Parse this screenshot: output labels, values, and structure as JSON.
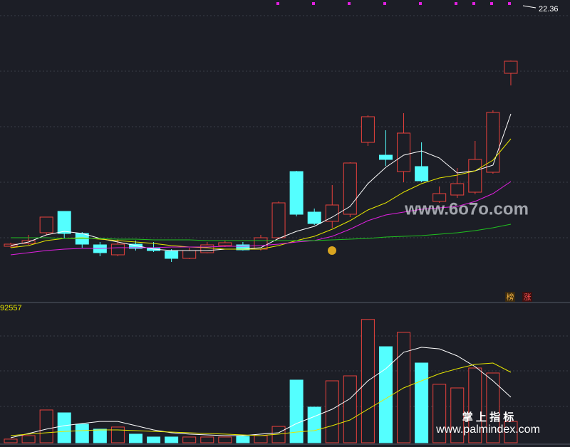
{
  "chart_data": [
    {
      "type": "candlestick",
      "max_marker": 22.36,
      "ylim": [
        8,
        25
      ],
      "up_color": "#e8413c",
      "down_color": "#54ffff",
      "open": [
        11.16,
        11.32,
        11.92,
        13.12,
        11.88,
        11.24,
        10.68,
        11.28,
        11.04,
        10.88,
        10.48,
        10.8,
        11.2,
        11.24,
        11.0,
        11.64,
        15.36,
        13.08,
        12.56,
        12.96,
        17.0,
        16.28,
        15.36,
        15.64,
        13.68,
        14.04,
        14.2,
        15.32,
        20.88
      ],
      "high": [
        11.36,
        11.8,
        12.8,
        13.12,
        11.96,
        11.4,
        11.56,
        11.48,
        11.4,
        11.0,
        11.08,
        11.4,
        11.48,
        11.4,
        11.8,
        13.68,
        15.4,
        13.28,
        14.6,
        15.88,
        18.52,
        17.68,
        18.64,
        17.0,
        14.52,
        15.56,
        17.08,
        18.8,
        21.6
      ],
      "low": [
        11.08,
        11.24,
        11.8,
        11.6,
        11.08,
        10.6,
        10.6,
        10.92,
        10.84,
        10.28,
        10.44,
        10.76,
        11.12,
        10.92,
        10.92,
        11.56,
        12.84,
        12.36,
        12.2,
        12.8,
        16.8,
        15.68,
        14.76,
        14.76,
        13.6,
        13.88,
        14.08,
        15.24,
        20.2
      ],
      "close": [
        11.28,
        11.48,
        12.8,
        11.88,
        11.28,
        10.8,
        11.28,
        11.04,
        10.92,
        10.48,
        10.92,
        11.24,
        11.36,
        10.96,
        11.64,
        13.6,
        12.96,
        12.44,
        13.48,
        15.84,
        18.44,
        16.04,
        17.52,
        14.84,
        14.12,
        14.68,
        16.04,
        18.68,
        21.56
      ],
      "series": [
        {
          "color": "#ffffff",
          "values": [
            11.2,
            11.4,
            11.8,
            12.0,
            11.88,
            11.6,
            11.4,
            11.2,
            11.0,
            10.92,
            10.92,
            10.92,
            11.0,
            11.0,
            11.08,
            11.6,
            12.0,
            12.28,
            12.8,
            13.4,
            14.68,
            15.6,
            16.28,
            16.52,
            16.12,
            15.28,
            15.4,
            15.72,
            18.6
          ]
        },
        {
          "color": "#e6e600",
          "values": [
            11.08,
            11.2,
            11.48,
            11.6,
            11.64,
            11.56,
            11.48,
            11.4,
            11.32,
            11.2,
            11.12,
            11.08,
            11.0,
            11.0,
            11.0,
            11.2,
            11.48,
            11.72,
            12.12,
            12.6,
            13.2,
            13.6,
            14.2,
            14.68,
            15.0,
            15.16,
            15.4,
            16.0,
            17.2
          ]
        },
        {
          "color": "#e020e0",
          "values": [
            10.68,
            10.8,
            10.92,
            11.0,
            11.04,
            11.04,
            11.08,
            11.08,
            11.08,
            11.12,
            11.12,
            11.12,
            11.16,
            11.16,
            11.2,
            11.28,
            11.4,
            11.48,
            11.72,
            12.12,
            12.6,
            12.92,
            13.08,
            13.24,
            13.32,
            13.4,
            13.68,
            14.12,
            14.8
          ]
        },
        {
          "color": "#20c020",
          "values": [
            11.64,
            11.64,
            11.64,
            11.6,
            11.6,
            11.6,
            11.56,
            11.56,
            11.52,
            11.52,
            11.52,
            11.48,
            11.48,
            11.48,
            11.48,
            11.48,
            11.48,
            11.48,
            11.52,
            11.56,
            11.6,
            11.68,
            11.72,
            11.76,
            11.84,
            11.92,
            12.04,
            12.2,
            12.4
          ]
        }
      ]
    },
    {
      "type": "volume",
      "value_label": 92557,
      "ylim": [
        0,
        100000
      ],
      "values": [
        2900,
        5700,
        26300,
        24000,
        14900,
        10900,
        12600,
        6900,
        4600,
        4600,
        4600,
        4600,
        4600,
        5100,
        5700,
        13100,
        50300,
        28600,
        49700,
        53700,
        99000,
        77100,
        88600,
        64000,
        46900,
        44000,
        60000,
        56000,
        17100
      ],
      "up": [
        true,
        true,
        true,
        false,
        false,
        false,
        true,
        false,
        false,
        false,
        true,
        true,
        true,
        false,
        true,
        true,
        false,
        false,
        true,
        true,
        true,
        false,
        true,
        false,
        true,
        true,
        true,
        true,
        true
      ],
      "series": [
        {
          "color": "#ffffff",
          "values": [
            4000,
            7400,
            10900,
            13700,
            15400,
            17100,
            17100,
            13700,
            10300,
            8000,
            6900,
            6300,
            5700,
            5700,
            6900,
            8000,
            15400,
            21100,
            26900,
            35400,
            49700,
            59400,
            72600,
            76600,
            75400,
            69700,
            61100,
            49700,
            36600
          ]
        },
        {
          "color": "#e6e600",
          "values": [
            5700,
            6900,
            8000,
            9100,
            9700,
            10300,
            10300,
            9700,
            9100,
            8600,
            8000,
            7400,
            6900,
            6300,
            5700,
            6900,
            8600,
            9700,
            13700,
            18300,
            26900,
            35400,
            44000,
            49700,
            55400,
            59400,
            62900,
            64000,
            56600
          ]
        }
      ]
    }
  ],
  "badges": [
    "榜",
    "涨"
  ],
  "watermarks": [
    "www.6o7o.com",
    "掌 上 指 标",
    "www.palmindex.com"
  ]
}
